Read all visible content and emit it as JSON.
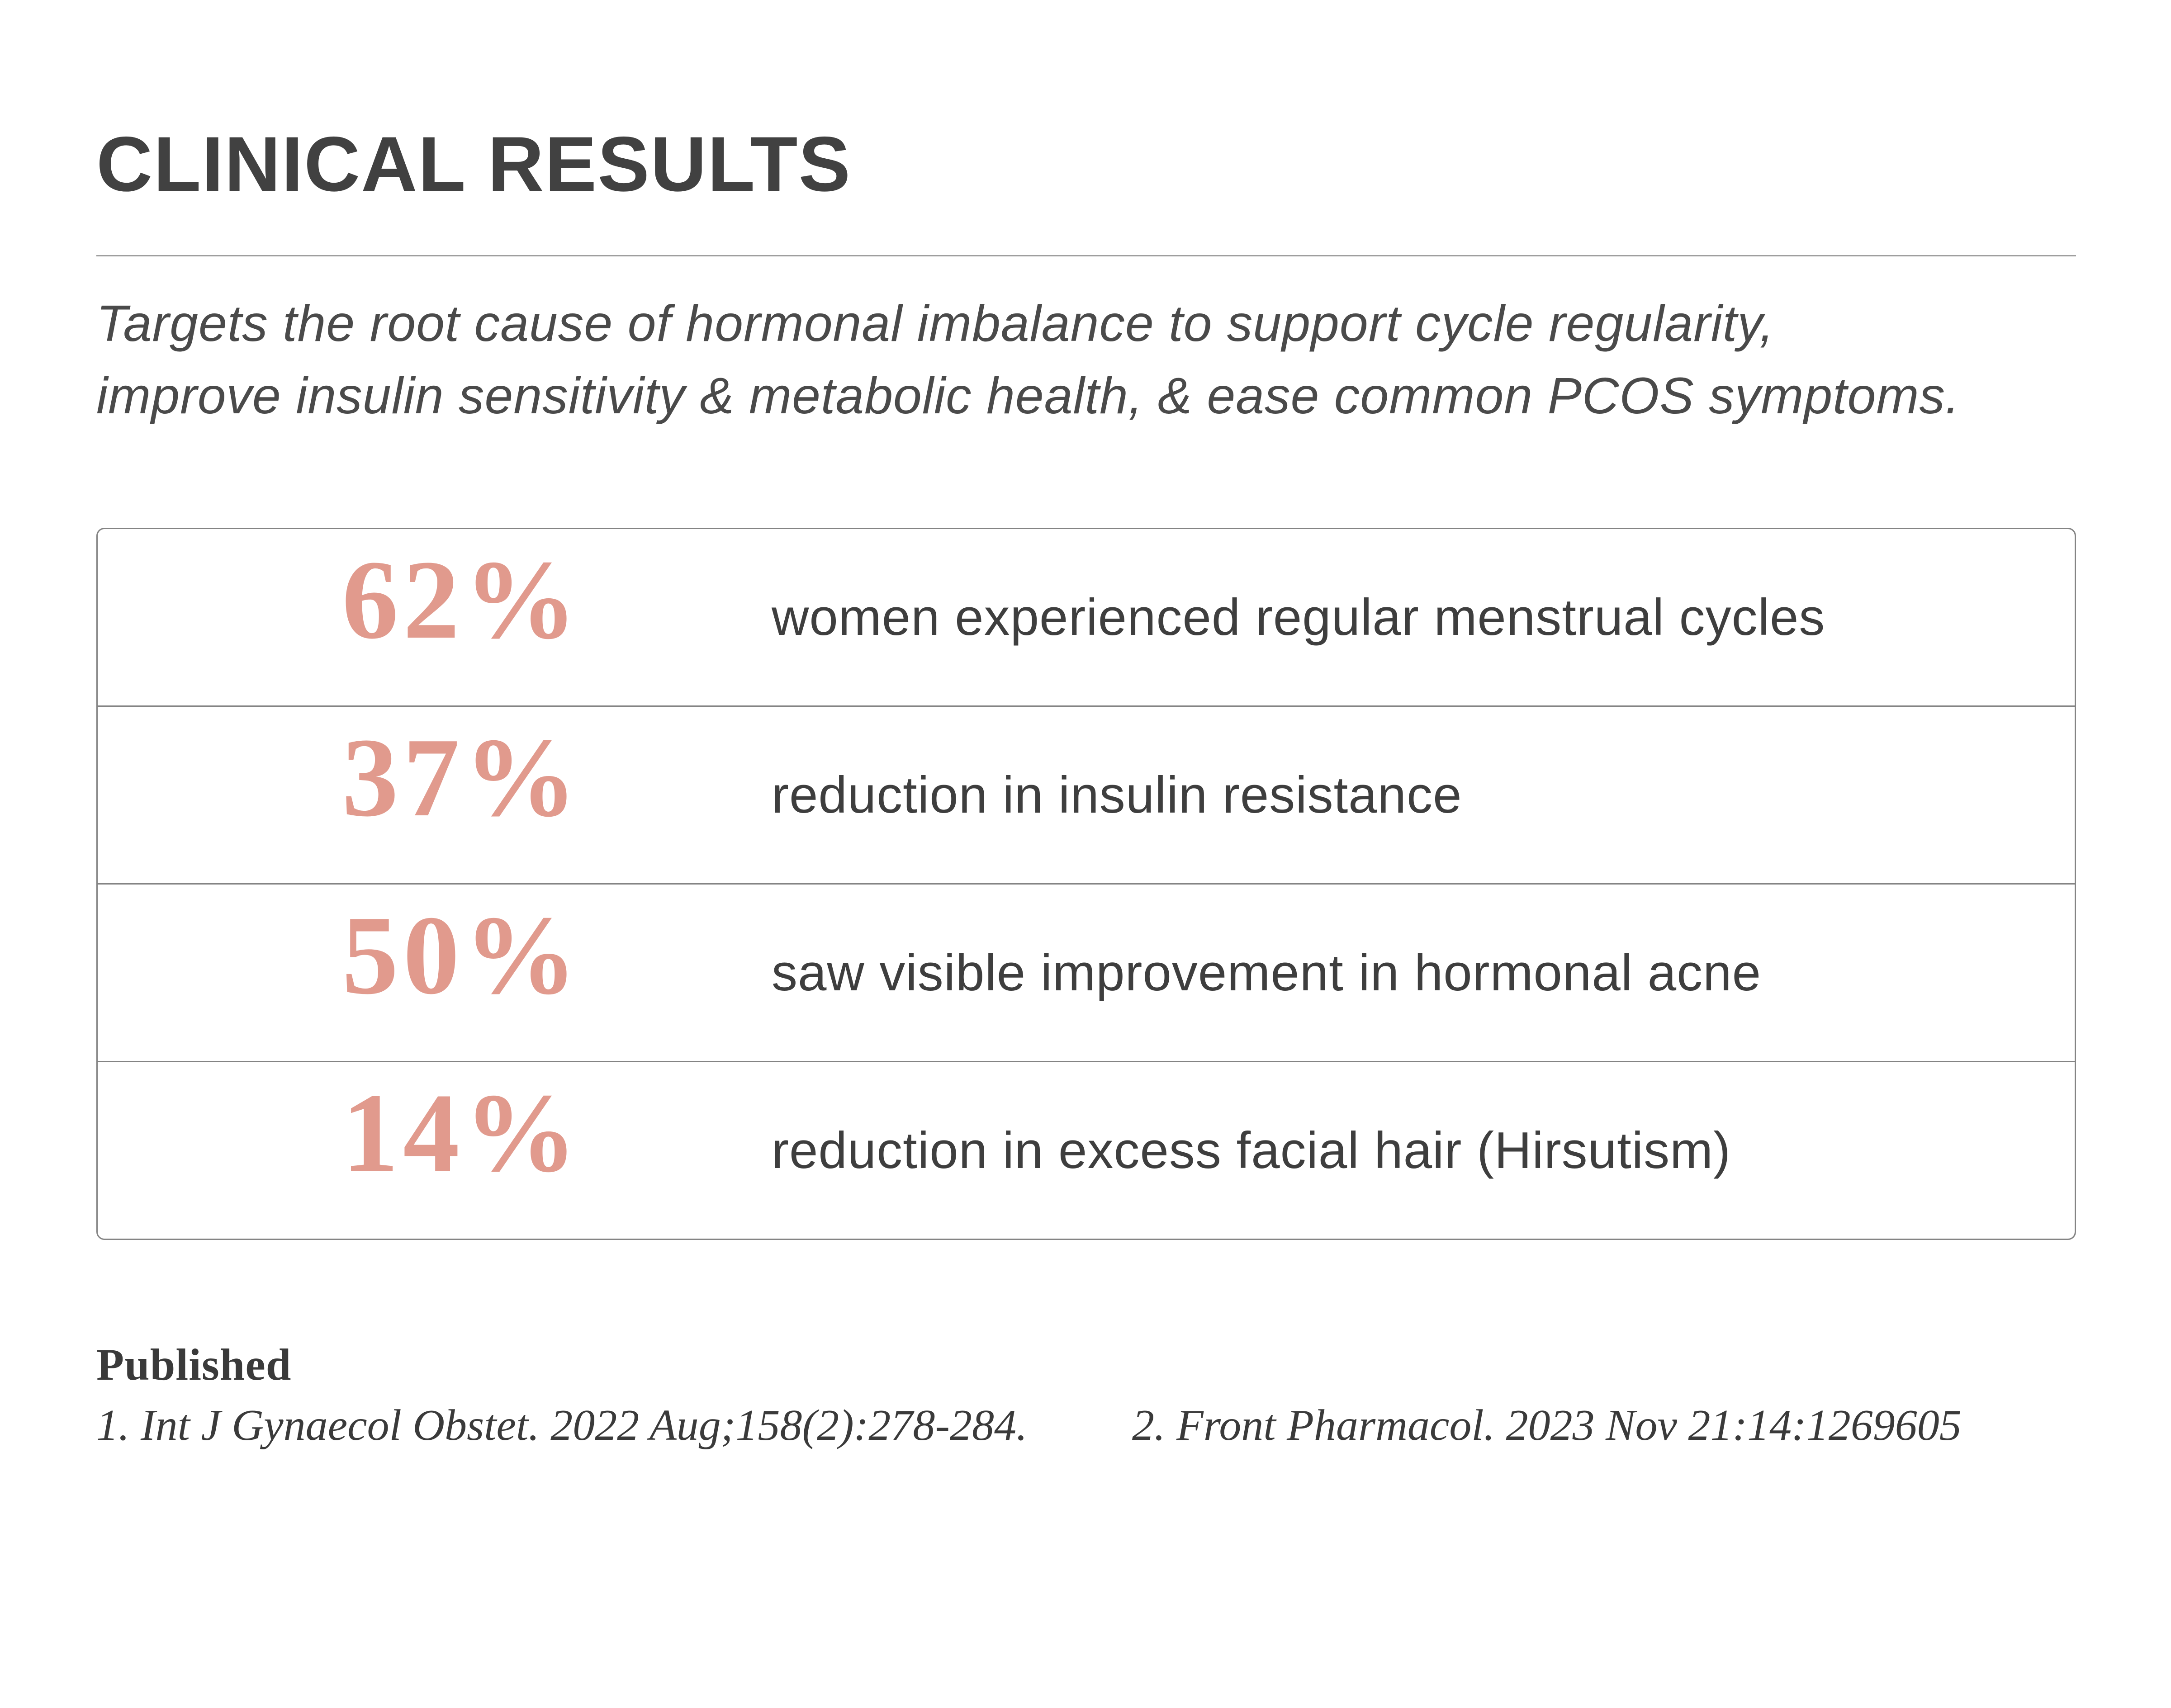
{
  "page": {
    "title": "CLINICAL RESULTS",
    "subtitle_line1": "Targets the root cause of hormonal imbalance to support cycle regularity,",
    "subtitle_line2": "improve insulin sensitivity & metabolic health, & ease common PCOS symptoms."
  },
  "results_table": {
    "rows": [
      {
        "percent": "62%",
        "label": "women experienced regular menstrual cycles"
      },
      {
        "percent": "37%",
        "label": "reduction in insulin resistance"
      },
      {
        "percent": "50%",
        "label": "saw visible improvement in hormonal acne"
      },
      {
        "percent": "14%",
        "label": "reduction in excess facial hair (Hirsutism)"
      }
    ]
  },
  "footer": {
    "published_label": "Published",
    "references": [
      "1. Int J Gynaecol Obstet. 2022 Aug;158(2):278-284.",
      "2. Front Pharmacol. 2023 Nov 21:14:1269605"
    ]
  },
  "colors": {
    "accent_percent": "#e19a8d",
    "title_text": "#414141",
    "body_text": "#3e3e3e",
    "subtitle_text": "#4a4a4a",
    "footer_text": "#3a3a3a",
    "table_border": "#848484",
    "divider": "#9e9e9e",
    "background": "#ffffff"
  }
}
